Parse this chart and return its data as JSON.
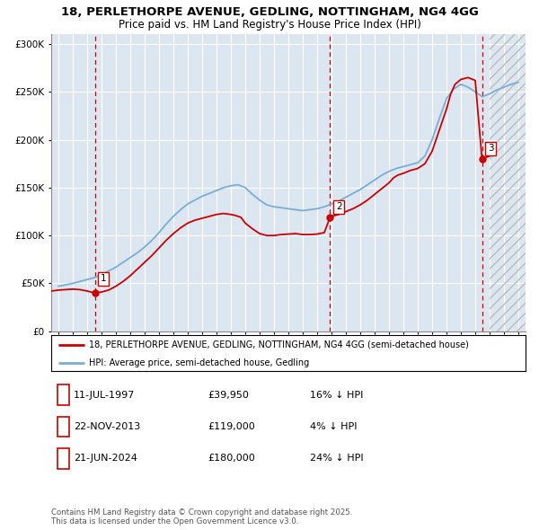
{
  "title1": "18, PERLETHORPE AVENUE, GEDLING, NOTTINGHAM, NG4 4GG",
  "title2": "Price paid vs. HM Land Registry's House Price Index (HPI)",
  "plot_bg_color": "#dce6f1",
  "grid_color": "#ffffff",
  "sale_markers": [
    {
      "date": 1997.54,
      "price": 39950,
      "label": "1"
    },
    {
      "date": 2013.897,
      "price": 119000,
      "label": "2"
    },
    {
      "date": 2024.47,
      "price": 180000,
      "label": "3"
    }
  ],
  "vline_dates": [
    1997.54,
    2013.897,
    2024.47
  ],
  "legend_entries": [
    "18, PERLETHORPE AVENUE, GEDLING, NOTTINGHAM, NG4 4GG (semi-detached house)",
    "HPI: Average price, semi-detached house, Gedling"
  ],
  "table_rows": [
    [
      "1",
      "11-JUL-1997",
      "£39,950",
      "16% ↓ HPI"
    ],
    [
      "2",
      "22-NOV-2013",
      "£119,000",
      "4% ↓ HPI"
    ],
    [
      "3",
      "21-JUN-2024",
      "£180,000",
      "24% ↓ HPI"
    ]
  ],
  "footer": "Contains HM Land Registry data © Crown copyright and database right 2025.\nThis data is licensed under the Open Government Licence v3.0.",
  "ylim": [
    0,
    310000
  ],
  "xlim_start": 1994.5,
  "xlim_end": 2027.5,
  "future_start": 2025.0,
  "red_line_color": "#cc0000",
  "blue_line_color": "#7aadd4",
  "marker_color": "#cc0000",
  "vline_color": "#cc0000",
  "yticks": [
    0,
    50000,
    100000,
    150000,
    200000,
    250000,
    300000
  ],
  "ytick_labels": [
    "£0",
    "£50K",
    "£100K",
    "£150K",
    "£200K",
    "£250K",
    "£300K"
  ],
  "hpi_years": [
    1995,
    1995.5,
    1996,
    1996.5,
    1997,
    1997.5,
    1998,
    1998.5,
    1999,
    1999.5,
    2000,
    2000.5,
    2001,
    2001.5,
    2002,
    2002.5,
    2003,
    2003.5,
    2004,
    2004.5,
    2005,
    2005.5,
    2006,
    2006.5,
    2007,
    2007.5,
    2008,
    2008.5,
    2009,
    2009.5,
    2010,
    2010.5,
    2011,
    2011.5,
    2012,
    2012.5,
    2013,
    2013.5,
    2014,
    2014.5,
    2015,
    2015.5,
    2016,
    2016.5,
    2017,
    2017.5,
    2018,
    2018.5,
    2019,
    2019.5,
    2020,
    2020.5,
    2021,
    2021.5,
    2022,
    2022.5,
    2023,
    2023.5,
    2024,
    2024.5,
    2025,
    2025.5,
    2026,
    2026.5,
    2027
  ],
  "hpi_values": [
    47000,
    48500,
    50000,
    52000,
    54000,
    56000,
    59000,
    63000,
    67000,
    72000,
    77000,
    82000,
    88000,
    95000,
    103000,
    112000,
    120000,
    127000,
    133000,
    137000,
    141000,
    144000,
    147000,
    150000,
    152000,
    153000,
    150000,
    143000,
    137000,
    132000,
    130000,
    129000,
    128000,
    127000,
    126000,
    127000,
    128000,
    130000,
    133000,
    136000,
    140000,
    144000,
    148000,
    153000,
    158000,
    163000,
    167000,
    170000,
    172000,
    174000,
    176000,
    183000,
    200000,
    222000,
    243000,
    253000,
    258000,
    255000,
    250000,
    245000,
    248000,
    252000,
    255000,
    258000,
    260000
  ],
  "red_years": [
    1994.5,
    1995,
    1995.5,
    1996,
    1996.5,
    1997,
    1997.54,
    1997.54,
    1998,
    1998.5,
    1999,
    1999.5,
    2000,
    2000.5,
    2001,
    2001.5,
    2002,
    2002.5,
    2003,
    2003.5,
    2004,
    2004.5,
    2005,
    2005.5,
    2006,
    2006.5,
    2007,
    2007.3,
    2007.7,
    2008,
    2008.5,
    2009,
    2009.5,
    2010,
    2010.5,
    2011,
    2011.5,
    2012,
    2012.5,
    2013,
    2013.5,
    2013.897,
    2013.897,
    2014,
    2014.5,
    2015,
    2015.5,
    2016,
    2016.5,
    2017,
    2017.5,
    2018,
    2018.3,
    2018.6,
    2019,
    2019.5,
    2020,
    2020.5,
    2021,
    2021.5,
    2022,
    2022.3,
    2022.6,
    2023,
    2023.5,
    2024,
    2024.47,
    2024.47,
    2025
  ],
  "red_values": [
    42000,
    43000,
    43500,
    44000,
    43500,
    42000,
    39950,
    39950,
    41000,
    43000,
    47000,
    52000,
    58000,
    65000,
    72000,
    79000,
    87000,
    95000,
    102000,
    108000,
    113000,
    116000,
    118000,
    120000,
    122000,
    123000,
    122000,
    121000,
    119000,
    113000,
    107000,
    102000,
    100000,
    100000,
    101000,
    101500,
    102000,
    101000,
    101000,
    101500,
    103000,
    119000,
    119000,
    120000,
    122000,
    125000,
    128000,
    132000,
    137000,
    143000,
    149000,
    155000,
    160000,
    163000,
    165000,
    168000,
    170000,
    175000,
    188000,
    210000,
    232000,
    248000,
    258000,
    263000,
    265000,
    262000,
    180000,
    180000,
    183000
  ]
}
